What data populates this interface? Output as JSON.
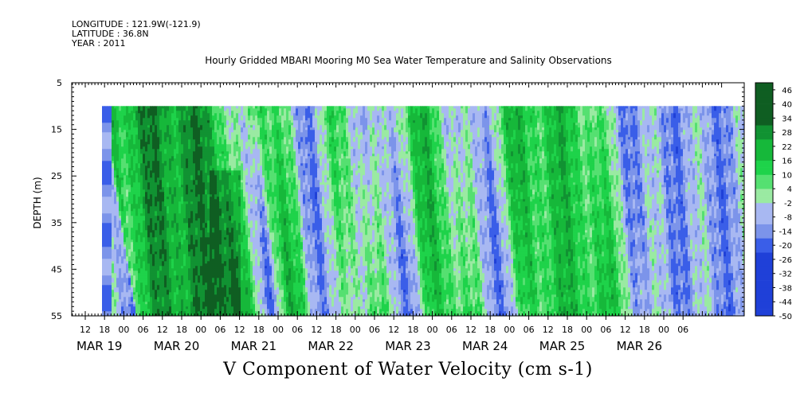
{
  "header": {
    "longitude": "LONGITUDE : 121.9W(-121.9)",
    "latitude": "LATITUDE : 36.8N",
    "year": "YEAR : 2011"
  },
  "title": "Hourly Gridded MBARI Mooring M0 Sea Water Temperature and Salinity Observations",
  "x_axis_title": "V Component of Water Velocity (cm s-1)",
  "chart_data": {
    "type": "heatmap",
    "title": "Hourly Gridded MBARI Mooring M0 Sea Water Temperature and Salinity Observations",
    "xlabel": "V Component of Water Velocity (cm s-1)",
    "ylabel": "DEPTH (m)",
    "x_hour_ticks": [
      "12",
      "18",
      "00",
      "06",
      "12",
      "18",
      "00",
      "06",
      "12",
      "18",
      "00",
      "06",
      "12",
      "18",
      "00",
      "06",
      "12",
      "18",
      "00",
      "06",
      "12",
      "18",
      "00",
      "06",
      "12",
      "18",
      "00",
      "06",
      "12",
      "18",
      "00",
      "06"
    ],
    "x_day_labels": [
      "MAR 19",
      "MAR 20",
      "MAR 21",
      "MAR 22",
      "MAR 23",
      "MAR 24",
      "MAR 25",
      "MAR 26"
    ],
    "y_ticks": [
      5,
      15,
      25,
      35,
      45,
      55
    ],
    "ylim": [
      55,
      5
    ],
    "data_depth_range": [
      10,
      55
    ],
    "colorbar_labels": [
      "46",
      "40",
      "34",
      "28",
      "22",
      "16",
      "10",
      "4",
      "-2",
      "-8",
      "-14",
      "-20",
      "-26",
      "-32",
      "-38",
      "-44",
      "-50"
    ],
    "colorbar_range": [
      -50,
      49
    ],
    "palette": {
      "strong_negative": "#00106a",
      "negative": "#3a5ee8",
      "weak_negative": "#a8b8f2",
      "weak_positive": "#9aeaa2",
      "positive": "#1ed34a",
      "strong_positive": "#0f5e22"
    },
    "dominant_sign_by_time": [
      {
        "x": "Mar 19 17:00",
        "sign": "negative"
      },
      {
        "x": "Mar 19 18:00",
        "sign": "positive"
      },
      {
        "x": "Mar 20 06:00",
        "sign": "strong positive"
      },
      {
        "x": "Mar 21 00:00",
        "sign": "strong positive"
      },
      {
        "x": "Mar 21 12:00",
        "sign": "negative"
      },
      {
        "x": "Mar 21 18:00",
        "sign": "positive"
      },
      {
        "x": "Mar 22 06:00",
        "sign": "negative"
      },
      {
        "x": "Mar 22 18:00",
        "sign": "weak positive"
      },
      {
        "x": "Mar 23 06:00",
        "sign": "negative"
      },
      {
        "x": "Mar 23 18:00",
        "sign": "positive"
      },
      {
        "x": "Mar 24 12:00",
        "sign": "negative"
      },
      {
        "x": "Mar 25 00:00",
        "sign": "positive"
      },
      {
        "x": "Mar 25 18:00",
        "sign": "positive"
      },
      {
        "x": "Mar 26 12:00",
        "sign": "negative"
      }
    ]
  }
}
